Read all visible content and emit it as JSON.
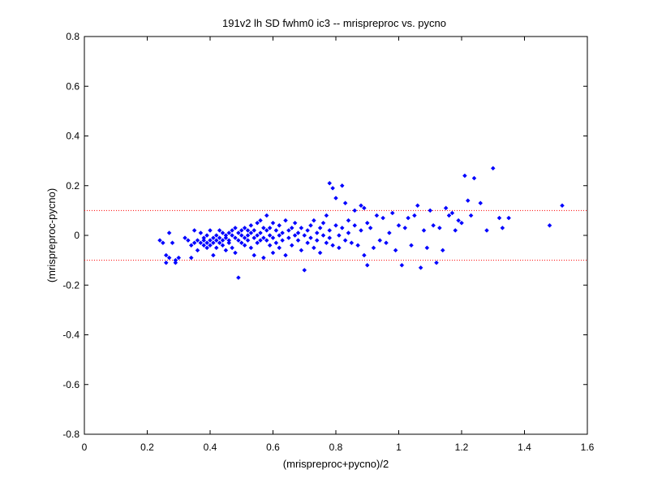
{
  "chart_data": {
    "type": "scatter",
    "title": "191v2 lh SD fwhm0 ic3 -- mrispreproc vs. pycno",
    "xlabel": "(mrispreproc+pycno)/2",
    "ylabel": "(mrispreproc-pycno)",
    "xlim": [
      0,
      1.6
    ],
    "ylim": [
      -0.8,
      0.8
    ],
    "xticks": [
      "0",
      "0.2",
      "0.4",
      "0.6",
      "0.8",
      "1",
      "1.2",
      "1.4",
      "1.6"
    ],
    "yticks": [
      "-0.8",
      "-0.6",
      "-0.4",
      "-0.2",
      "0",
      "0.2",
      "0.4",
      "0.6",
      "0.8"
    ],
    "xtick_values": [
      0,
      0.2,
      0.4,
      0.6,
      0.8,
      1.0,
      1.2,
      1.4,
      1.6
    ],
    "ytick_values": [
      -0.8,
      -0.6,
      -0.4,
      -0.2,
      0,
      0.2,
      0.4,
      0.6,
      0.8
    ],
    "reference_lines": [
      0.1,
      -0.1
    ],
    "reference_line_color": "#ff0000",
    "marker_color": "#0000ff",
    "marker": "diamond",
    "grid": false,
    "points": [
      [
        0.24,
        -0.02
      ],
      [
        0.25,
        -0.03
      ],
      [
        0.26,
        -0.11
      ],
      [
        0.26,
        -0.08
      ],
      [
        0.27,
        0.01
      ],
      [
        0.27,
        -0.09
      ],
      [
        0.28,
        -0.03
      ],
      [
        0.29,
        -0.1
      ],
      [
        0.29,
        -0.11
      ],
      [
        0.3,
        -0.09
      ],
      [
        0.32,
        -0.01
      ],
      [
        0.33,
        -0.02
      ],
      [
        0.34,
        -0.04
      ],
      [
        0.34,
        -0.09
      ],
      [
        0.35,
        0.02
      ],
      [
        0.35,
        -0.03
      ],
      [
        0.36,
        -0.02
      ],
      [
        0.36,
        -0.06
      ],
      [
        0.37,
        -0.03
      ],
      [
        0.37,
        0.01
      ],
      [
        0.38,
        -0.02
      ],
      [
        0.38,
        -0.04
      ],
      [
        0.38,
        -0.01
      ],
      [
        0.39,
        -0.03
      ],
      [
        0.39,
        -0.05
      ],
      [
        0.39,
        0.0
      ],
      [
        0.4,
        -0.02
      ],
      [
        0.4,
        0.02
      ],
      [
        0.4,
        -0.04
      ],
      [
        0.41,
        -0.01
      ],
      [
        0.41,
        -0.08
      ],
      [
        0.41,
        -0.03
      ],
      [
        0.42,
        0.0
      ],
      [
        0.42,
        -0.02
      ],
      [
        0.42,
        -0.05
      ],
      [
        0.43,
        -0.01
      ],
      [
        0.43,
        0.02
      ],
      [
        0.43,
        -0.03
      ],
      [
        0.44,
        -0.02
      ],
      [
        0.44,
        0.01
      ],
      [
        0.44,
        -0.04
      ],
      [
        0.45,
        -0.01
      ],
      [
        0.45,
        -0.06
      ],
      [
        0.45,
        0.0
      ],
      [
        0.46,
        -0.03
      ],
      [
        0.46,
        0.01
      ],
      [
        0.46,
        -0.02
      ],
      [
        0.47,
        0.0
      ],
      [
        0.47,
        -0.05
      ],
      [
        0.47,
        0.02
      ],
      [
        0.48,
        -0.01
      ],
      [
        0.48,
        0.03
      ],
      [
        0.48,
        -0.07
      ],
      [
        0.49,
        -0.02
      ],
      [
        0.49,
        0.01
      ],
      [
        0.49,
        -0.17
      ],
      [
        0.5,
        0.0
      ],
      [
        0.5,
        -0.03
      ],
      [
        0.5,
        0.02
      ],
      [
        0.51,
        -0.01
      ],
      [
        0.51,
        0.03
      ],
      [
        0.51,
        -0.04
      ],
      [
        0.52,
        0.0
      ],
      [
        0.52,
        0.02
      ],
      [
        0.52,
        -0.02
      ],
      [
        0.53,
        0.01
      ],
      [
        0.53,
        -0.05
      ],
      [
        0.53,
        0.04
      ],
      [
        0.54,
        -0.01
      ],
      [
        0.54,
        0.02
      ],
      [
        0.54,
        -0.08
      ],
      [
        0.55,
        0.0
      ],
      [
        0.55,
        0.05
      ],
      [
        0.55,
        -0.03
      ],
      [
        0.56,
        0.01
      ],
      [
        0.56,
        -0.02
      ],
      [
        0.56,
        0.06
      ],
      [
        0.57,
        -0.01
      ],
      [
        0.57,
        0.03
      ],
      [
        0.57,
        -0.09
      ],
      [
        0.58,
        0.02
      ],
      [
        0.58,
        -0.02
      ],
      [
        0.58,
        0.08
      ],
      [
        0.59,
        0.0
      ],
      [
        0.59,
        -0.04
      ],
      [
        0.59,
        0.03
      ],
      [
        0.6,
        -0.01
      ],
      [
        0.6,
        0.05
      ],
      [
        0.6,
        -0.07
      ],
      [
        0.61,
        0.02
      ],
      [
        0.61,
        -0.03
      ],
      [
        0.62,
        0.0
      ],
      [
        0.62,
        0.04
      ],
      [
        0.62,
        -0.05
      ],
      [
        0.63,
        0.01
      ],
      [
        0.63,
        -0.02
      ],
      [
        0.64,
        0.06
      ],
      [
        0.64,
        -0.08
      ],
      [
        0.65,
        0.02
      ],
      [
        0.65,
        -0.01
      ],
      [
        0.66,
        0.03
      ],
      [
        0.66,
        -0.04
      ],
      [
        0.67,
        0.0
      ],
      [
        0.67,
        0.05
      ],
      [
        0.68,
        -0.02
      ],
      [
        0.68,
        0.01
      ],
      [
        0.69,
        -0.06
      ],
      [
        0.69,
        0.03
      ],
      [
        0.7,
        0.0
      ],
      [
        0.7,
        -0.14
      ],
      [
        0.71,
        0.02
      ],
      [
        0.71,
        -0.03
      ],
      [
        0.72,
        0.04
      ],
      [
        0.72,
        -0.01
      ],
      [
        0.73,
        0.06
      ],
      [
        0.73,
        -0.05
      ],
      [
        0.74,
        0.01
      ],
      [
        0.74,
        -0.02
      ],
      [
        0.75,
        0.03
      ],
      [
        0.75,
        -0.07
      ],
      [
        0.76,
        0.0
      ],
      [
        0.76,
        0.05
      ],
      [
        0.77,
        -0.03
      ],
      [
        0.77,
        0.08
      ],
      [
        0.78,
        0.02
      ],
      [
        0.78,
        -0.01
      ],
      [
        0.78,
        0.21
      ],
      [
        0.79,
        0.19
      ],
      [
        0.79,
        -0.04
      ],
      [
        0.8,
        0.04
      ],
      [
        0.8,
        0.15
      ],
      [
        0.81,
        0.0
      ],
      [
        0.81,
        -0.05
      ],
      [
        0.82,
        0.2
      ],
      [
        0.82,
        0.03
      ],
      [
        0.83,
        0.13
      ],
      [
        0.83,
        -0.02
      ],
      [
        0.84,
        0.06
      ],
      [
        0.84,
        0.01
      ],
      [
        0.85,
        -0.03
      ],
      [
        0.86,
        0.1
      ],
      [
        0.86,
        0.04
      ],
      [
        0.87,
        -0.04
      ],
      [
        0.88,
        0.12
      ],
      [
        0.88,
        0.02
      ],
      [
        0.89,
        -0.08
      ],
      [
        0.89,
        0.11
      ],
      [
        0.9,
        -0.12
      ],
      [
        0.9,
        0.05
      ],
      [
        0.91,
        0.03
      ],
      [
        0.92,
        -0.05
      ],
      [
        0.93,
        0.08
      ],
      [
        0.94,
        -0.02
      ],
      [
        0.95,
        0.07
      ],
      [
        0.96,
        -0.03
      ],
      [
        0.97,
        0.01
      ],
      [
        0.98,
        0.09
      ],
      [
        0.99,
        -0.06
      ],
      [
        1.0,
        0.04
      ],
      [
        1.01,
        -0.12
      ],
      [
        1.02,
        0.03
      ],
      [
        1.03,
        0.07
      ],
      [
        1.04,
        -0.04
      ],
      [
        1.05,
        0.08
      ],
      [
        1.06,
        0.12
      ],
      [
        1.07,
        -0.13
      ],
      [
        1.08,
        0.02
      ],
      [
        1.09,
        -0.05
      ],
      [
        1.1,
        0.1
      ],
      [
        1.11,
        0.04
      ],
      [
        1.12,
        -0.11
      ],
      [
        1.13,
        0.03
      ],
      [
        1.14,
        -0.06
      ],
      [
        1.15,
        0.11
      ],
      [
        1.16,
        0.08
      ],
      [
        1.17,
        0.09
      ],
      [
        1.18,
        0.02
      ],
      [
        1.19,
        0.06
      ],
      [
        1.2,
        0.05
      ],
      [
        1.21,
        0.24
      ],
      [
        1.22,
        0.14
      ],
      [
        1.23,
        0.08
      ],
      [
        1.24,
        0.23
      ],
      [
        1.26,
        0.13
      ],
      [
        1.28,
        0.02
      ],
      [
        1.3,
        0.27
      ],
      [
        1.32,
        0.07
      ],
      [
        1.33,
        0.03
      ],
      [
        1.35,
        0.07
      ],
      [
        1.48,
        0.04
      ],
      [
        1.52,
        0.12
      ]
    ]
  }
}
